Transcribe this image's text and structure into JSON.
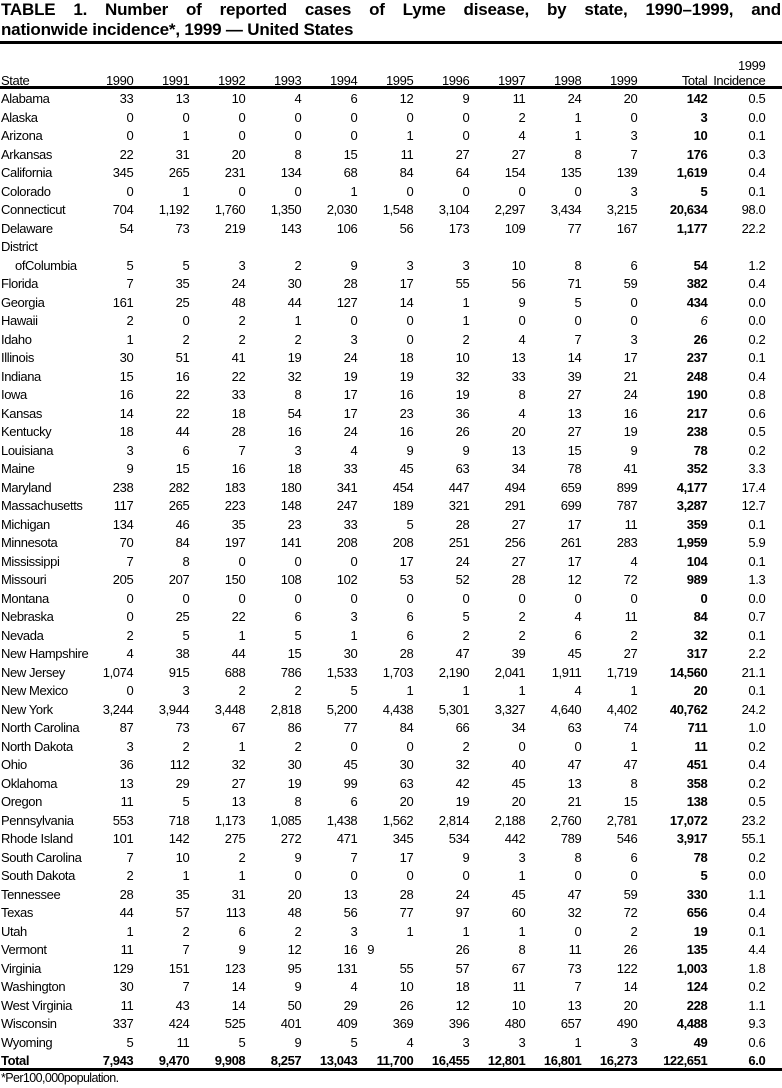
{
  "title": {
    "line1_words": [
      "TABLE",
      "1.",
      "Number",
      "of",
      "reported",
      "cases",
      "of",
      "Lyme",
      "disease,",
      "by",
      "state,",
      "1990–1999,",
      "and"
    ],
    "line2": "nationwide incidence*, 1999 — United States"
  },
  "columns": [
    "State",
    "1990",
    "1991",
    "1992",
    "1993",
    "1994",
    "1995",
    "1996",
    "1997",
    "1998",
    "1999",
    "Total"
  ],
  "incidence_header": [
    "1999",
    "Incidence"
  ],
  "rows": [
    {
      "state": "Alabama",
      "values": [
        "33",
        "13",
        "10",
        "4",
        "6",
        "12",
        "9",
        "11",
        "24",
        "20"
      ],
      "total": "142",
      "incidence": "0.5"
    },
    {
      "state": "Alaska",
      "values": [
        "0",
        "0",
        "0",
        "0",
        "0",
        "0",
        "0",
        "2",
        "1",
        "0"
      ],
      "total": "3",
      "incidence": "0.0"
    },
    {
      "state": "Arizona",
      "values": [
        "0",
        "1",
        "0",
        "0",
        "0",
        "1",
        "0",
        "4",
        "1",
        "3"
      ],
      "total": "10",
      "incidence": "0.1"
    },
    {
      "state": "Arkansas",
      "values": [
        "22",
        "31",
        "20",
        "8",
        "15",
        "11",
        "27",
        "27",
        "8",
        "7"
      ],
      "total": "176",
      "incidence": "0.3"
    },
    {
      "state": "California",
      "values": [
        "345",
        "265",
        "231",
        "134",
        "68",
        "84",
        "64",
        "154",
        "135",
        "139"
      ],
      "total": "1,619",
      "incidence": "0.4"
    },
    {
      "state": "Colorado",
      "values": [
        "0",
        "1",
        "0",
        "0",
        "1",
        "0",
        "0",
        "0",
        "0",
        "3"
      ],
      "total": "5",
      "incidence": "0.1"
    },
    {
      "state": "Connecticut",
      "values": [
        "704",
        "1,192",
        "1,760",
        "1,350",
        "2,030",
        "1,548",
        "3,104",
        "2,297",
        "3,434",
        "3,215"
      ],
      "total": "20,634",
      "incidence": "98.0"
    },
    {
      "state": "Delaware",
      "values": [
        "54",
        "73",
        "219",
        "143",
        "106",
        "56",
        "173",
        "109",
        "77",
        "167"
      ],
      "total": "1,177",
      "incidence": "22.2"
    },
    {
      "state": [
        "District",
        "ofColumbia"
      ],
      "values": [
        "5",
        "5",
        "3",
        "2",
        "9",
        "3",
        "3",
        "10",
        "8",
        "6"
      ],
      "total": "54",
      "incidence": "1.2"
    },
    {
      "state": "Florida",
      "values": [
        "7",
        "35",
        "24",
        "30",
        "28",
        "17",
        "55",
        "56",
        "71",
        "59"
      ],
      "total": "382",
      "incidence": "0.4"
    },
    {
      "state": "Georgia",
      "values": [
        "161",
        "25",
        "48",
        "44",
        "127",
        "14",
        "1",
        "9",
        "5",
        "0"
      ],
      "total": "434",
      "incidence": "0.0"
    },
    {
      "state": "Hawaii",
      "values": [
        "2",
        "0",
        "2",
        "1",
        "0",
        "0",
        "1",
        "0",
        "0",
        "0"
      ],
      "total": "6",
      "incidence": "0.0"
    },
    {
      "state": "Idaho",
      "values": [
        "1",
        "2",
        "2",
        "2",
        "3",
        "0",
        "2",
        "4",
        "7",
        "3"
      ],
      "total": "26",
      "incidence": "0.2"
    },
    {
      "state": "Illinois",
      "values": [
        "30",
        "51",
        "41",
        "19",
        "24",
        "18",
        "10",
        "13",
        "14",
        "17"
      ],
      "total": "237",
      "incidence": "0.1"
    },
    {
      "state": "Indiana",
      "values": [
        "15",
        "16",
        "22",
        "32",
        "19",
        "19",
        "32",
        "33",
        "39",
        "21"
      ],
      "total": "248",
      "incidence": "0.4"
    },
    {
      "state": "Iowa",
      "values": [
        "16",
        "22",
        "33",
        "8",
        "17",
        "16",
        "19",
        "8",
        "27",
        "24"
      ],
      "total": "190",
      "incidence": "0.8"
    },
    {
      "state": "Kansas",
      "values": [
        "14",
        "22",
        "18",
        "54",
        "17",
        "23",
        "36",
        "4",
        "13",
        "16"
      ],
      "total": "217",
      "incidence": "0.6"
    },
    {
      "state": "Kentucky",
      "values": [
        "18",
        "44",
        "28",
        "16",
        "24",
        "16",
        "26",
        "20",
        "27",
        "19"
      ],
      "total": "238",
      "incidence": "0.5"
    },
    {
      "state": "Louisiana",
      "values": [
        "3",
        "6",
        "7",
        "3",
        "4",
        "9",
        "9",
        "13",
        "15",
        "9"
      ],
      "total": "78",
      "incidence": "0.2"
    },
    {
      "state": "Maine",
      "values": [
        "9",
        "15",
        "16",
        "18",
        "33",
        "45",
        "63",
        "34",
        "78",
        "41"
      ],
      "total": "352",
      "incidence": "3.3"
    },
    {
      "state": "Maryland",
      "values": [
        "238",
        "282",
        "183",
        "180",
        "341",
        "454",
        "447",
        "494",
        "659",
        "899"
      ],
      "total": "4,177",
      "incidence": "17.4"
    },
    {
      "state": "Massachusetts",
      "values": [
        "117",
        "265",
        "223",
        "148",
        "247",
        "189",
        "321",
        "291",
        "699",
        "787"
      ],
      "total": "3,287",
      "incidence": "12.7"
    },
    {
      "state": "Michigan",
      "values": [
        "134",
        "46",
        "35",
        "23",
        "33",
        "5",
        "28",
        "27",
        "17",
        "11"
      ],
      "total": "359",
      "incidence": "0.1"
    },
    {
      "state": "Minnesota",
      "values": [
        "70",
        "84",
        "197",
        "141",
        "208",
        "208",
        "251",
        "256",
        "261",
        "283"
      ],
      "total": "1,959",
      "incidence": "5.9"
    },
    {
      "state": "Mississippi",
      "values": [
        "7",
        "8",
        "0",
        "0",
        "0",
        "17",
        "24",
        "27",
        "17",
        "4"
      ],
      "total": "104",
      "incidence": "0.1"
    },
    {
      "state": "Missouri",
      "values": [
        "205",
        "207",
        "150",
        "108",
        "102",
        "53",
        "52",
        "28",
        "12",
        "72"
      ],
      "total": "989",
      "incidence": "1.3"
    },
    {
      "state": "Montana",
      "values": [
        "0",
        "0",
        "0",
        "0",
        "0",
        "0",
        "0",
        "0",
        "0",
        "0"
      ],
      "total": "0",
      "incidence": "0.0"
    },
    {
      "state": "Nebraska",
      "values": [
        "0",
        "25",
        "22",
        "6",
        "3",
        "6",
        "5",
        "2",
        "4",
        "11"
      ],
      "total": "84",
      "incidence": "0.7"
    },
    {
      "state": "Nevada",
      "values": [
        "2",
        "5",
        "1",
        "5",
        "1",
        "6",
        "2",
        "2",
        "6",
        "2"
      ],
      "total": "32",
      "incidence": "0.1"
    },
    {
      "state": "New Hampshire",
      "values": [
        "4",
        "38",
        "44",
        "15",
        "30",
        "28",
        "47",
        "39",
        "45",
        "27"
      ],
      "total": "317",
      "incidence": "2.2"
    },
    {
      "state": "New Jersey",
      "values": [
        "1,074",
        "915",
        "688",
        "786",
        "1,533",
        "1,703",
        "2,190",
        "2,041",
        "1,911",
        "1,719"
      ],
      "total": "14,560",
      "incidence": "21.1"
    },
    {
      "state": "New Mexico",
      "values": [
        "0",
        "3",
        "2",
        "2",
        "5",
        "1",
        "1",
        "1",
        "4",
        "1"
      ],
      "total": "20",
      "incidence": "0.1"
    },
    {
      "state": "New York",
      "values": [
        "3,244",
        "3,944",
        "3,448",
        "2,818",
        "5,200",
        "4,438",
        "5,301",
        "3,327",
        "4,640",
        "4,402"
      ],
      "total": "40,762",
      "incidence": "24.2"
    },
    {
      "state": "North Carolina",
      "values": [
        "87",
        "73",
        "67",
        "86",
        "77",
        "84",
        "66",
        "34",
        "63",
        "74"
      ],
      "total": "711",
      "incidence": "1.0"
    },
    {
      "state": "North Dakota",
      "values": [
        "3",
        "2",
        "1",
        "2",
        "0",
        "0",
        "2",
        "0",
        "0",
        "1"
      ],
      "total": "11",
      "incidence": "0.2"
    },
    {
      "state": "Ohio",
      "values": [
        "36",
        "112",
        "32",
        "30",
        "45",
        "30",
        "32",
        "40",
        "47",
        "47"
      ],
      "total": "451",
      "incidence": "0.4"
    },
    {
      "state": "Oklahoma",
      "values": [
        "13",
        "29",
        "27",
        "19",
        "99",
        "63",
        "42",
        "45",
        "13",
        "8"
      ],
      "total": "358",
      "incidence": "0.2"
    },
    {
      "state": "Oregon",
      "values": [
        "11",
        "5",
        "13",
        "8",
        "6",
        "20",
        "19",
        "20",
        "21",
        "15"
      ],
      "total": "138",
      "incidence": "0.5"
    },
    {
      "state": "Pennsylvania",
      "values": [
        "553",
        "718",
        "1,173",
        "1,085",
        "1,438",
        "1,562",
        "2,814",
        "2,188",
        "2,760",
        "2,781"
      ],
      "total": "17,072",
      "incidence": "23.2"
    },
    {
      "state": "Rhode Island",
      "values": [
        "101",
        "142",
        "275",
        "272",
        "471",
        "345",
        "534",
        "442",
        "789",
        "546"
      ],
      "total": "3,917",
      "incidence": "55.1"
    },
    {
      "state": "South Carolina",
      "values": [
        "7",
        "10",
        "2",
        "9",
        "7",
        "17",
        "9",
        "3",
        "8",
        "6"
      ],
      "total": "78",
      "incidence": "0.2"
    },
    {
      "state": "South Dakota",
      "values": [
        "2",
        "1",
        "1",
        "0",
        "0",
        "0",
        "0",
        "1",
        "0",
        "0"
      ],
      "total": "5",
      "incidence": "0.0"
    },
    {
      "state": "Tennessee",
      "values": [
        "28",
        "35",
        "31",
        "20",
        "13",
        "28",
        "24",
        "45",
        "47",
        "59"
      ],
      "total": "330",
      "incidence": "1.1"
    },
    {
      "state": "Texas",
      "values": [
        "44",
        "57",
        "113",
        "48",
        "56",
        "77",
        "97",
        "60",
        "32",
        "72"
      ],
      "total": "656",
      "incidence": "0.4"
    },
    {
      "state": "Utah",
      "values": [
        "1",
        "2",
        "6",
        "2",
        "3",
        "1",
        "1",
        "1",
        "0",
        "2"
      ],
      "total": "19",
      "incidence": "0.1"
    },
    {
      "state": "Vermont",
      "values": [
        "11",
        "7",
        "9",
        "12",
        "16",
        "9",
        "26",
        "8",
        "11",
        "26"
      ],
      "total": "135",
      "incidence": "4.4"
    },
    {
      "state": "Virginia",
      "values": [
        "129",
        "151",
        "123",
        "95",
        "131",
        "55",
        "57",
        "67",
        "73",
        "122"
      ],
      "total": "1,003",
      "incidence": "1.8"
    },
    {
      "state": "Washington",
      "values": [
        "30",
        "7",
        "14",
        "9",
        "4",
        "10",
        "18",
        "11",
        "7",
        "14"
      ],
      "total": "124",
      "incidence": "0.2"
    },
    {
      "state": "West Virginia",
      "values": [
        "11",
        "43",
        "14",
        "50",
        "29",
        "26",
        "12",
        "10",
        "13",
        "20"
      ],
      "total": "228",
      "incidence": "1.1"
    },
    {
      "state": "Wisconsin",
      "values": [
        "337",
        "424",
        "525",
        "401",
        "409",
        "369",
        "396",
        "480",
        "657",
        "490"
      ],
      "total": "4,488",
      "incidence": "9.3"
    },
    {
      "state": "Wyoming",
      "values": [
        "5",
        "11",
        "5",
        "9",
        "5",
        "4",
        "3",
        "3",
        "1",
        "3"
      ],
      "total": "49",
      "incidence": "0.6"
    }
  ],
  "total_row": {
    "state": "Total",
    "values": [
      "7,943",
      "9,470",
      "9,908",
      "8,257",
      "13,043",
      "11,700",
      "16,455",
      "12,801",
      "16,801",
      "16,273"
    ],
    "total": "122,651",
    "incidence": "6.0"
  },
  "footnote": "*Per100,000population."
}
